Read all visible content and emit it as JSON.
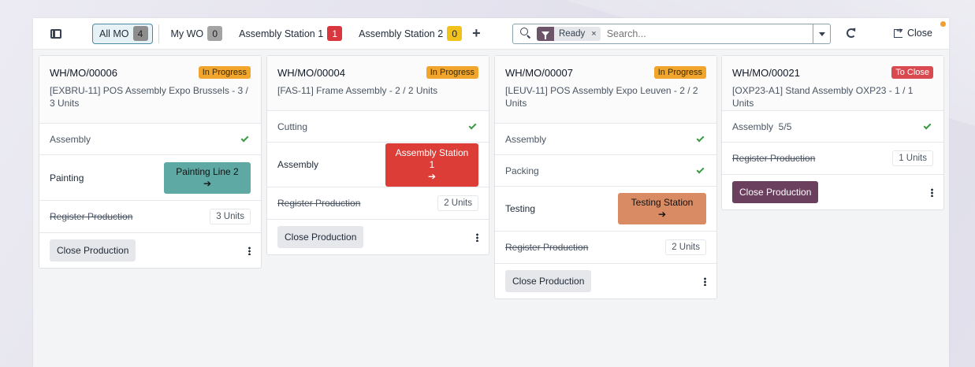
{
  "topbar": {
    "filters": [
      {
        "label": "All MO",
        "count": "4"
      },
      {
        "label": "My WO",
        "count": "0"
      },
      {
        "label": "Assembly Station 1",
        "count": "1"
      },
      {
        "label": "Assembly Station 2",
        "count": "0"
      }
    ],
    "add_label": "+",
    "search": {
      "facet": "Ready",
      "facet_remove": "×",
      "placeholder": "Search..."
    },
    "close_label": "Close"
  },
  "cards": [
    {
      "title": "WH/MO/00006",
      "status": "In Progress",
      "description": "[EXBRU-11] POS Assembly Expo Brussels - 3 / 3 Units",
      "steps": [
        {
          "label": "Assembly",
          "done": true
        },
        {
          "label": "Painting",
          "workcenter": "Painting Line 2",
          "arrow": "➔"
        }
      ],
      "register_label": "Register Production",
      "register_units": "3 Units",
      "close_label": "Close Production"
    },
    {
      "title": "WH/MO/00004",
      "status": "In Progress",
      "description": "[FAS-11] Frame Assembly - 2 / 2 Units",
      "steps": [
        {
          "label": "Cutting",
          "done": true
        },
        {
          "label": "Assembly",
          "workcenter": "Assembly Station 1",
          "arrow": "➔"
        }
      ],
      "register_label": "Register Production",
      "register_units": "2 Units",
      "close_label": "Close Production"
    },
    {
      "title": "WH/MO/00007",
      "status": "In Progress",
      "description": "[LEUV-11] POS Assembly Expo Leuven - 2 / 2 Units",
      "steps": [
        {
          "label": "Assembly",
          "done": true
        },
        {
          "label": "Packing",
          "done": true
        },
        {
          "label": "Testing",
          "workcenter": "Testing Station",
          "arrow": "➔"
        }
      ],
      "register_label": "Register Production",
      "register_units": "2 Units",
      "close_label": "Close Production"
    },
    {
      "title": "WH/MO/00021",
      "status": "To Close",
      "description": "[OXP23-A1] Stand Assembly OXP23 - 1 / 1 Units",
      "steps": [
        {
          "label": "Assembly  5/5",
          "done": true
        }
      ],
      "register_label": "Register Production",
      "register_units": "1 Units",
      "close_label": "Close Production"
    }
  ],
  "colors": {
    "in_progress": "#f1a52c",
    "to_close": "#d84a50",
    "painting_line": "#5fa9a4",
    "assembly_station": "#dc3d36",
    "testing_station": "#d98b63",
    "primary": "#6b3f5e"
  }
}
